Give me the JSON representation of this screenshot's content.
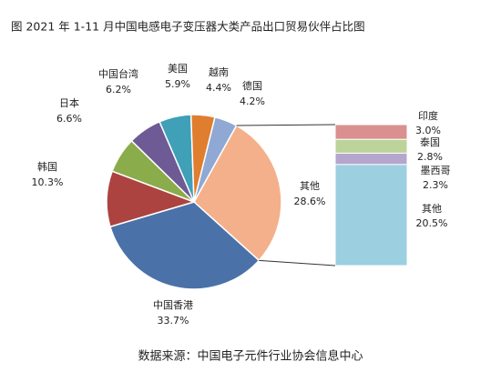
{
  "chart_data": {
    "type": "pie-of-bar",
    "title": "图    2021 年 1-11 月中国电感电子变压器大类产品出口贸易伙伴占比图",
    "source": "数据来源：中国电子元件行业协会信息中心",
    "categories": [
      "其他",
      "中国香港",
      "韩国",
      "日本",
      "中国台湾",
      "美国",
      "越南",
      "德国"
    ],
    "values": [
      28.6,
      33.7,
      10.3,
      6.6,
      6.2,
      5.9,
      4.4,
      4.2
    ],
    "value_labels": [
      "28.6%",
      "33.7%",
      "10.3%",
      "6.6%",
      "6.2%",
      "5.9%",
      "4.4%",
      "4.2%"
    ],
    "colors": [
      "#f4b08a",
      "#4a72a8",
      "#ad4340",
      "#8aac4a",
      "#6e5a94",
      "#3fa0b8",
      "#e07e30",
      "#8fa8d4"
    ],
    "bar": {
      "categories": [
        "印度",
        "泰国",
        "墨西哥",
        "其他"
      ],
      "values": [
        3.0,
        2.8,
        2.3,
        20.5
      ],
      "value_labels": [
        "3.0%",
        "2.8%",
        "2.3%",
        "20.5%"
      ],
      "colors": [
        "#d9908f",
        "#bcd39a",
        "#b4a6cc",
        "#9ccfdf"
      ]
    }
  }
}
